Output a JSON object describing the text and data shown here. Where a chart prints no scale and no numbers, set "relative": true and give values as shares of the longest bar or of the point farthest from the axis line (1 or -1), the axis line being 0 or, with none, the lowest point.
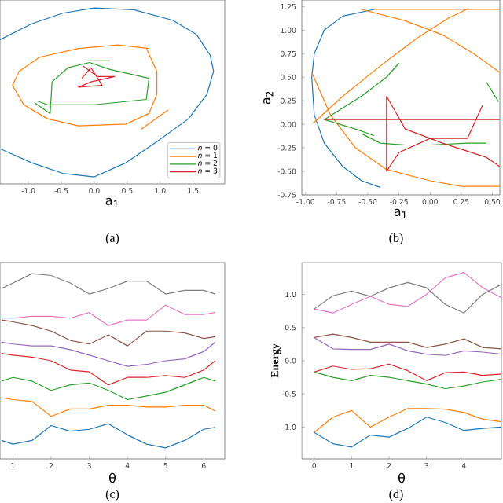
{
  "chart_data": [
    {
      "type": "line",
      "xlabel": "a$_{1}$",
      "annotations": [
        "(a)"
      ],
      "relative": true,
      "legend": "bottom right",
      "marker": "none",
      "grid": false,
      "xlim": [
        -1.43,
        1.98
      ],
      "xticks": [
        {
          "value": -1,
          "label": "-1.0"
        },
        {
          "value": -0.5,
          "label": "-0.5"
        },
        {
          "value": 0,
          "label": "0.0"
        },
        {
          "value": 0.5,
          "label": "0.5"
        },
        {
          "value": 1,
          "label": "1.0"
        },
        {
          "value": 1.5,
          "label": "1.5"
        }
      ],
      "series": [
        {
          "name": "*n* = 0",
          "color": "#1f77b4",
          "x": [
            -1.43,
            -0.95,
            -0.48,
            0,
            0.6,
            1.19,
            1.55,
            1.76,
            1.81,
            1.71,
            1.43,
            0.95,
            0.48,
            0,
            -0.48,
            -0.95,
            -1.43
          ],
          "values": [
            0.82,
            0.91,
            0.97,
            1.0,
            0.99,
            0.93,
            0.85,
            0.73,
            0.64,
            0.51,
            0.37,
            0.24,
            0.12,
            0.04,
            0.06,
            0.12,
            0.2
          ]
        },
        {
          "name": "*n* = 1",
          "color": "#ff7f0e",
          "x": [
            0.83,
            0.36,
            -0.24,
            -0.83,
            -1.14,
            -1.24,
            -1.07,
            -0.71,
            -0.24,
            0.48,
            0.83,
            0.95,
            0.95,
            0.79,
            null,
            0.71,
            1.12
          ],
          "values": [
            0.77,
            0.79,
            0.77,
            0.72,
            0.64,
            0.56,
            0.45,
            0.37,
            0.33,
            0.34,
            0.4,
            0.51,
            0.64,
            0.77,
            null,
            0.31,
            0.42
          ]
        },
        {
          "name": "*n* = 2",
          "color": "#2ca02c",
          "x": [
            -0.12,
            0.24,
            null,
            -0.9,
            -0.67,
            -0.64,
            -0.4,
            -0.07,
            0.24,
            0.83,
            0.79,
            0,
            -0.71,
            -0.86
          ],
          "values": [
            0.7,
            0.7,
            null,
            0.46,
            0.4,
            0.58,
            0.66,
            0.69,
            0.65,
            0.6,
            0.48,
            0.45,
            0.45,
            0.47
          ]
        },
        {
          "name": "*n* = 3",
          "color": "#d62728",
          "x": [
            -0.17,
            0.05,
            0.31,
            -0.05,
            -0.24,
            0.12,
            -0.05,
            -0.19
          ],
          "values": [
            0.67,
            0.61,
            0.61,
            0.58,
            0.55,
            0.56,
            0.66,
            0.6
          ]
        }
      ]
    },
    {
      "type": "line",
      "xlabel": "a$_{1}$",
      "ylabel": "a$_{2}$",
      "annotations": [
        "(b)"
      ],
      "marker": "none",
      "grid": false,
      "xlim": [
        -1.03,
        0.56
      ],
      "xticks": [
        {
          "value": -1,
          "label": "-1.00"
        },
        {
          "value": -0.75,
          "label": "-0.75"
        },
        {
          "value": -0.5,
          "label": "-0.50"
        },
        {
          "value": -0.25,
          "label": "-0.25"
        },
        {
          "value": 0,
          "label": "0.00"
        },
        {
          "value": 0.25,
          "label": "0.25"
        },
        {
          "value": 0.5,
          "label": "0.50"
        }
      ],
      "ylim": [
        -0.75,
        1.32
      ],
      "yticks": [
        {
          "value": -0.75,
          "label": "-0.75"
        },
        {
          "value": -0.5,
          "label": "-0.50"
        },
        {
          "value": -0.25,
          "label": "-0.25"
        },
        {
          "value": 0,
          "label": "0.00"
        },
        {
          "value": 0.25,
          "label": "0.25"
        },
        {
          "value": 0.5,
          "label": "0.50"
        },
        {
          "value": 0.75,
          "label": "0.75"
        },
        {
          "value": 1,
          "label": "1.00"
        },
        {
          "value": 1.25,
          "label": "1.25"
        }
      ],
      "series": [
        {
          "color": "#1f77b4",
          "x": [
            -0.45,
            -0.7,
            -0.85,
            -0.93,
            -0.95,
            -0.93,
            -0.85,
            -0.7,
            -0.55,
            -0.4
          ],
          "values": [
            1.22,
            1.15,
            1.0,
            0.75,
            0.5,
            0.1,
            -0.2,
            -0.45,
            -0.6,
            -0.67
          ]
        },
        {
          "color": "#ff7f0e",
          "x": [
            -0.45,
            0.56,
            null,
            -0.94,
            -0.7,
            -0.4,
            -0.1,
            0.15,
            0.31,
            null,
            -0.95,
            -0.8,
            -0.6,
            -0.35,
            0,
            0.25,
            0.56,
            null,
            -0.55,
            -0.2,
            0.1,
            0.35,
            0.56
          ],
          "values": [
            1.22,
            1.22,
            null,
            0.01,
            0.3,
            0.62,
            0.92,
            1.13,
            1.23,
            null,
            0.55,
            0.1,
            -0.25,
            -0.48,
            -0.6,
            -0.66,
            -0.66,
            null,
            1.22,
            1.1,
            0.95,
            0.75,
            0.55
          ]
        },
        {
          "color": "#2ca02c",
          "x": [
            0.45,
            0.48,
            0.52,
            0.55,
            null,
            -0.25,
            -0.35,
            -0.55,
            -0.85,
            -0.6,
            -0.45,
            null,
            -0.55,
            -0.4,
            -0.2,
            0,
            0.3,
            0.45
          ],
          "values": [
            0.45,
            0.39,
            0.3,
            0.24,
            null,
            0.65,
            0.5,
            0.3,
            0.05,
            -0.05,
            -0.12,
            null,
            -0.1,
            -0.2,
            -0.22,
            -0.22,
            -0.2,
            -0.2
          ]
        },
        {
          "color": "#d62728",
          "x": [
            -0.85,
            0.56,
            null,
            -0.35,
            -0.35,
            -0.25,
            0,
            0.3,
            0.42,
            null,
            -0.35,
            -0.2,
            0.1,
            0.45,
            0.56
          ],
          "values": [
            0.05,
            0.05,
            null,
            0.3,
            -0.5,
            -0.3,
            -0.15,
            -0.15,
            0.2,
            null,
            0.3,
            -0.05,
            -0.2,
            -0.35,
            -0.45
          ]
        }
      ]
    },
    {
      "type": "line",
      "xlabel": "θ",
      "annotations": [
        "(c)"
      ],
      "relative": true,
      "marker": "none",
      "grid": false,
      "xlim": [
        0.66,
        6.55
      ],
      "xticks": [
        1,
        2,
        3,
        4,
        5,
        6
      ],
      "x": [
        0.7,
        1,
        1.5,
        2,
        2.5,
        3,
        3.5,
        4,
        4.5,
        5,
        5.5,
        6,
        6.3
      ],
      "series": [
        {
          "color": "#7f7f7f",
          "values": [
            0.92,
            0.95,
            1.0,
            0.99,
            0.95,
            0.89,
            0.92,
            0.96,
            0.96,
            0.89,
            0.91,
            0.91,
            0.89
          ]
        },
        {
          "color": "#e377c2",
          "values": [
            0.76,
            0.76,
            0.77,
            0.77,
            0.76,
            0.79,
            0.72,
            0.75,
            0.75,
            0.83,
            0.78,
            0.78,
            0.79
          ]
        },
        {
          "color": "#8c564b",
          "values": [
            0.75,
            0.74,
            0.72,
            0.69,
            0.64,
            0.62,
            0.67,
            0.61,
            0.69,
            0.69,
            0.68,
            0.65,
            0.66
          ]
        },
        {
          "color": "#9467bd",
          "values": [
            0.63,
            0.62,
            0.61,
            0.61,
            0.59,
            0.56,
            0.53,
            0.5,
            0.51,
            0.53,
            0.54,
            0.58,
            0.63
          ]
        },
        {
          "color": "#d62728",
          "values": [
            0.57,
            0.56,
            0.55,
            0.53,
            0.48,
            0.47,
            0.4,
            0.44,
            0.44,
            0.45,
            0.44,
            0.48,
            0.53
          ]
        },
        {
          "color": "#2ca02c",
          "values": [
            0.42,
            0.44,
            0.42,
            0.37,
            0.4,
            0.41,
            0.37,
            0.32,
            0.34,
            0.36,
            0.4,
            0.44,
            0.42
          ]
        },
        {
          "color": "#ff7f0e",
          "values": [
            0.33,
            0.32,
            0.31,
            0.23,
            0.27,
            0.27,
            0.29,
            0.29,
            0.28,
            0.28,
            0.29,
            0.29,
            0.26
          ]
        },
        {
          "color": "#1f77b4",
          "values": [
            0.1,
            0.08,
            0.1,
            0.18,
            0.15,
            0.16,
            0.19,
            0.13,
            0.08,
            0.06,
            0.1,
            0.16,
            0.17
          ]
        }
      ]
    },
    {
      "type": "line",
      "xlabel": "θ",
      "ylabel": "Energy",
      "annotations": [
        "(d)"
      ],
      "marker": "none",
      "grid": false,
      "xlim": [
        -0.33,
        5.0
      ],
      "xticks": [
        0,
        1,
        2,
        3,
        4
      ],
      "ylim": [
        -1.48,
        1.48
      ],
      "yticks": [
        {
          "value": -1,
          "label": "-1.0"
        },
        {
          "value": -0.5,
          "label": "-0.5"
        },
        {
          "value": 0,
          "label": "0.0"
        },
        {
          "value": 0.5,
          "label": "0.5"
        },
        {
          "value": 1,
          "label": "1.0"
        }
      ],
      "x": [
        0,
        0.5,
        1,
        1.5,
        2,
        2.5,
        3,
        3.5,
        4,
        4.5,
        5
      ],
      "series": [
        {
          "color": "#e377c2",
          "values": [
            0.78,
            0.72,
            0.85,
            0.97,
            0.85,
            0.82,
            1.0,
            1.25,
            1.33,
            1.1,
            0.95
          ]
        },
        {
          "color": "#7f7f7f",
          "values": [
            0.78,
            0.98,
            1.05,
            0.97,
            1.1,
            1.18,
            1.1,
            0.85,
            0.72,
            1.0,
            1.15
          ]
        },
        {
          "color": "#8c564b",
          "values": [
            0.35,
            0.4,
            0.35,
            0.28,
            0.28,
            0.28,
            0.2,
            0.25,
            0.33,
            0.2,
            0.18
          ]
        },
        {
          "color": "#9467bd",
          "values": [
            0.35,
            0.18,
            0.17,
            0.17,
            0.25,
            0.15,
            0.1,
            0.08,
            0.15,
            0.13,
            0.1
          ]
        },
        {
          "color": "#d62728",
          "values": [
            -0.17,
            -0.08,
            -0.13,
            -0.12,
            -0.05,
            -0.15,
            -0.3,
            -0.18,
            -0.17,
            -0.22,
            -0.2
          ]
        },
        {
          "color": "#2ca02c",
          "values": [
            -0.17,
            -0.25,
            -0.3,
            -0.22,
            -0.25,
            -0.3,
            -0.35,
            -0.42,
            -0.38,
            -0.32,
            -0.28
          ]
        },
        {
          "color": "#ff7f0e",
          "values": [
            -1.08,
            -0.85,
            -0.75,
            -1.0,
            -0.85,
            -0.72,
            -0.72,
            -0.73,
            -0.78,
            -0.88,
            -0.92
          ]
        },
        {
          "color": "#1f77b4",
          "values": [
            -1.08,
            -1.25,
            -1.3,
            -1.12,
            -1.15,
            -1.02,
            -0.85,
            -0.93,
            -1.05,
            -1.02,
            -1.0
          ]
        }
      ]
    }
  ]
}
